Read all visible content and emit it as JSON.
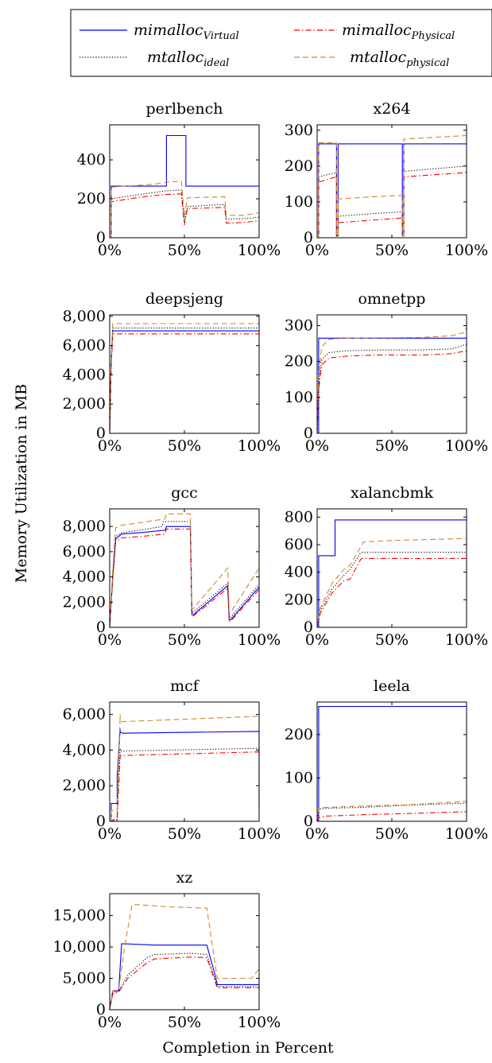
{
  "figure": {
    "ylabel": "Memory Utilization in MB",
    "xlabel": "Completion in Percent"
  },
  "legend": {
    "position": "top",
    "entries": [
      {
        "key": "mv",
        "base": "mimalloc",
        "sub": "Virtual",
        "color": "#0000ff",
        "dash": "solid"
      },
      {
        "key": "mp",
        "base": "mimalloc",
        "sub": "Physical",
        "color": "#ff0000",
        "dash": "dashdot"
      },
      {
        "key": "mi",
        "base": "mtalloc",
        "sub": "ideal",
        "color": "#000000",
        "dash": "dotted"
      },
      {
        "key": "mph",
        "base": "mtalloc",
        "sub": "physical",
        "color": "#d2882f",
        "dash": "dashed"
      }
    ]
  },
  "chart_data": [
    {
      "type": "line",
      "title": "perlbench",
      "xlim": [
        0,
        100
      ],
      "ylim": [
        0,
        580
      ],
      "xticks": [
        0,
        50,
        100
      ],
      "xtick_labels": [
        "0%",
        "50%",
        "100%"
      ],
      "yticks": [
        0,
        200,
        400
      ],
      "ytick_labels": [
        "0",
        "200",
        "400"
      ],
      "series": [
        {
          "key": "mv",
          "x": [
            0,
            1,
            1,
            38,
            38,
            51,
            51,
            100
          ],
          "y": [
            0,
            0,
            265,
            265,
            525,
            525,
            265,
            265
          ]
        },
        {
          "key": "mp",
          "x": [
            0,
            1,
            1,
            20,
            37,
            48,
            50,
            52,
            74,
            77,
            78,
            90,
            100
          ],
          "y": [
            0,
            0,
            185,
            208,
            222,
            225,
            65,
            150,
            155,
            155,
            75,
            78,
            88
          ]
        },
        {
          "key": "mi",
          "x": [
            0,
            1,
            1,
            20,
            37,
            48,
            50,
            52,
            74,
            77,
            78,
            90,
            100
          ],
          "y": [
            0,
            0,
            200,
            222,
            240,
            245,
            80,
            160,
            170,
            170,
            95,
            98,
            105
          ]
        },
        {
          "key": "mph",
          "x": [
            0,
            1,
            1,
            30,
            38,
            47,
            48,
            50,
            52,
            74,
            77,
            78,
            90,
            100
          ],
          "y": [
            0,
            0,
            260,
            275,
            285,
            290,
            290,
            110,
            205,
            210,
            210,
            115,
            115,
            128
          ]
        }
      ]
    },
    {
      "type": "line",
      "title": "x264",
      "xlim": [
        0,
        100
      ],
      "ylim": [
        0,
        315
      ],
      "xticks": [
        0,
        50,
        100
      ],
      "xtick_labels": [
        "0%",
        "50%",
        "100%"
      ],
      "yticks": [
        0,
        100,
        200,
        300
      ],
      "ytick_labels": [
        "0",
        "100",
        "200",
        "300"
      ],
      "series": [
        {
          "key": "mv",
          "x": [
            0,
            1,
            1,
            13,
            13,
            14,
            14,
            57,
            57,
            58,
            58,
            100
          ],
          "y": [
            0,
            0,
            262,
            262,
            5,
            5,
            262,
            262,
            5,
            5,
            262,
            262
          ]
        },
        {
          "key": "mp",
          "x": [
            0,
            1,
            1,
            13,
            13,
            14,
            14,
            40,
            57,
            57,
            58,
            58,
            100
          ],
          "y": [
            0,
            0,
            155,
            170,
            5,
            5,
            42,
            50,
            55,
            5,
            5,
            170,
            182
          ]
        },
        {
          "key": "mi",
          "x": [
            0,
            1,
            1,
            13,
            13,
            14,
            14,
            40,
            57,
            57,
            58,
            58,
            100
          ],
          "y": [
            0,
            0,
            170,
            182,
            5,
            5,
            60,
            68,
            72,
            5,
            5,
            185,
            200
          ]
        },
        {
          "key": "mph",
          "x": [
            0,
            1,
            1,
            13,
            13,
            14,
            14,
            40,
            57,
            57,
            58,
            58,
            100
          ],
          "y": [
            0,
            0,
            265,
            265,
            5,
            5,
            108,
            115,
            118,
            5,
            5,
            275,
            285
          ]
        }
      ]
    },
    {
      "type": "line",
      "title": "deepsjeng",
      "xlim": [
        0,
        100
      ],
      "ylim": [
        0,
        8100
      ],
      "xticks": [
        0,
        50,
        100
      ],
      "xtick_labels": [
        "0%",
        "50%",
        "100%"
      ],
      "yticks": [
        0,
        2000,
        4000,
        6000,
        8000
      ],
      "ytick_labels": [
        "0",
        "2,000",
        "4,000",
        "6,000",
        "8,000"
      ],
      "series": [
        {
          "key": "mv",
          "x": [
            0,
            1,
            2,
            100
          ],
          "y": [
            0,
            5000,
            7000,
            7000
          ]
        },
        {
          "key": "mp",
          "x": [
            0,
            1,
            2,
            100
          ],
          "y": [
            0,
            4500,
            6800,
            6800
          ]
        },
        {
          "key": "mi",
          "x": [
            0,
            1,
            2,
            100
          ],
          "y": [
            0,
            4800,
            7200,
            7200
          ]
        },
        {
          "key": "mph",
          "x": [
            0,
            1,
            2,
            100
          ],
          "y": [
            0,
            5000,
            7500,
            7500
          ]
        }
      ]
    },
    {
      "type": "line",
      "title": "omnetpp",
      "xlim": [
        0,
        100
      ],
      "ylim": [
        0,
        330
      ],
      "xticks": [
        0,
        50,
        100
      ],
      "xtick_labels": [
        "0%",
        "50%",
        "100%"
      ],
      "yticks": [
        0,
        100,
        200,
        300
      ],
      "ytick_labels": [
        "0",
        "100",
        "200",
        "300"
      ],
      "series": [
        {
          "key": "mv",
          "x": [
            0,
            1,
            1,
            100
          ],
          "y": [
            0,
            0,
            265,
            265
          ]
        },
        {
          "key": "mp",
          "x": [
            0,
            1,
            3,
            8,
            20,
            40,
            70,
            90,
            100
          ],
          "y": [
            0,
            120,
            190,
            210,
            215,
            218,
            218,
            222,
            230
          ]
        },
        {
          "key": "mi",
          "x": [
            0,
            1,
            3,
            8,
            20,
            40,
            70,
            90,
            100
          ],
          "y": [
            0,
            140,
            205,
            225,
            230,
            232,
            232,
            235,
            248
          ]
        },
        {
          "key": "mph",
          "x": [
            0,
            1,
            3,
            8,
            20,
            40,
            70,
            90,
            98,
            100
          ],
          "y": [
            0,
            160,
            240,
            262,
            265,
            266,
            267,
            272,
            280,
            295
          ]
        }
      ]
    },
    {
      "type": "line",
      "title": "gcc",
      "xlim": [
        0,
        100
      ],
      "ylim": [
        0,
        9400
      ],
      "xticks": [
        0,
        50,
        100
      ],
      "xtick_labels": [
        "0%",
        "50%",
        "100%"
      ],
      "yticks": [
        0,
        2000,
        4000,
        6000,
        8000
      ],
      "ytick_labels": [
        "0",
        "2,000",
        "4,000",
        "6,000",
        "8,000"
      ],
      "series": [
        {
          "key": "mv",
          "x": [
            0,
            2,
            4,
            8,
            20,
            37,
            38,
            54,
            55,
            56,
            79,
            80,
            81,
            100
          ],
          "y": [
            0,
            4000,
            7000,
            7400,
            7500,
            7700,
            8000,
            8000,
            1000,
            1000,
            3300,
            600,
            600,
            3200
          ]
        },
        {
          "key": "mp",
          "x": [
            0,
            2,
            4,
            8,
            20,
            37,
            38,
            54,
            55,
            56,
            79,
            80,
            81,
            100
          ],
          "y": [
            0,
            3800,
            6800,
            7100,
            7200,
            7400,
            7800,
            7800,
            900,
            900,
            3100,
            500,
            500,
            3000
          ]
        },
        {
          "key": "mi",
          "x": [
            0,
            2,
            4,
            8,
            20,
            35,
            36,
            54,
            55,
            56,
            79,
            80,
            81,
            100
          ],
          "y": [
            0,
            4000,
            7200,
            7500,
            7700,
            8000,
            8400,
            8400,
            1200,
            1200,
            3500,
            800,
            800,
            3400
          ]
        },
        {
          "key": "mph",
          "x": [
            0,
            2,
            4,
            8,
            20,
            37,
            38,
            54,
            55,
            56,
            79,
            80,
            81,
            100
          ],
          "y": [
            0,
            4500,
            7900,
            8100,
            8300,
            8600,
            9000,
            9000,
            1500,
            1500,
            4700,
            1200,
            1200,
            4700
          ]
        }
      ]
    },
    {
      "type": "line",
      "title": "xalancbmk",
      "xlim": [
        0,
        100
      ],
      "ylim": [
        0,
        860
      ],
      "xticks": [
        0,
        50,
        100
      ],
      "xtick_labels": [
        "0%",
        "50%",
        "100%"
      ],
      "yticks": [
        0,
        200,
        400,
        600,
        800
      ],
      "ytick_labels": [
        "0",
        "200",
        "400",
        "600",
        "800"
      ],
      "series": [
        {
          "key": "mv",
          "x": [
            0,
            1,
            1,
            12,
            12,
            100
          ],
          "y": [
            0,
            0,
            520,
            520,
            780,
            780
          ]
        },
        {
          "key": "mp",
          "x": [
            0,
            2,
            10,
            18,
            22,
            29,
            30,
            32,
            100
          ],
          "y": [
            0,
            100,
            250,
            340,
            350,
            490,
            500,
            500,
            500
          ]
        },
        {
          "key": "mi",
          "x": [
            0,
            2,
            10,
            18,
            22,
            29,
            30,
            32,
            100
          ],
          "y": [
            0,
            120,
            280,
            380,
            420,
            540,
            545,
            545,
            545
          ]
        },
        {
          "key": "mph",
          "x": [
            0,
            2,
            10,
            18,
            22,
            30,
            31,
            50,
            100
          ],
          "y": [
            0,
            140,
            320,
            420,
            450,
            600,
            620,
            630,
            645
          ]
        }
      ]
    },
    {
      "type": "line",
      "title": "mcf",
      "xlim": [
        0,
        100
      ],
      "ylim": [
        0,
        6700
      ],
      "xticks": [
        0,
        50,
        100
      ],
      "xtick_labels": [
        "0%",
        "50%",
        "100%"
      ],
      "yticks": [
        0,
        2000,
        4000,
        6000
      ],
      "ytick_labels": [
        "0",
        "2,000",
        "4,000",
        "6,000"
      ],
      "series": [
        {
          "key": "mv",
          "x": [
            0,
            1,
            1,
            5,
            5,
            7,
            7,
            9,
            100,
            100
          ],
          "y": [
            0,
            0,
            1000,
            1000,
            2500,
            5200,
            5000,
            4950,
            5050,
            700
          ]
        },
        {
          "key": "mp",
          "x": [
            0,
            1,
            1,
            5,
            5,
            7,
            7,
            9,
            100,
            100
          ],
          "y": [
            0,
            0,
            50,
            50,
            200,
            3700,
            3700,
            3700,
            3900,
            500
          ]
        },
        {
          "key": "mi",
          "x": [
            0,
            1,
            1,
            5,
            5,
            7,
            7,
            9,
            100,
            100
          ],
          "y": [
            0,
            0,
            100,
            100,
            500,
            4100,
            3950,
            3950,
            4100,
            600
          ]
        },
        {
          "key": "mph",
          "x": [
            0,
            1,
            1,
            5,
            5,
            7,
            7,
            9,
            100,
            100
          ],
          "y": [
            0,
            0,
            600,
            600,
            1000,
            6000,
            5600,
            5600,
            5900,
            800
          ]
        }
      ]
    },
    {
      "type": "line",
      "title": "leela",
      "xlim": [
        0,
        100
      ],
      "ylim": [
        0,
        275
      ],
      "xticks": [
        0,
        50,
        100
      ],
      "xtick_labels": [
        "0%",
        "50%",
        "100%"
      ],
      "yticks": [
        0,
        100,
        200
      ],
      "ytick_labels": [
        "0",
        "100",
        "200"
      ],
      "series": [
        {
          "key": "mv",
          "x": [
            0,
            1,
            1,
            100
          ],
          "y": [
            0,
            0,
            265,
            265
          ]
        },
        {
          "key": "mp",
          "x": [
            0,
            1,
            5,
            30,
            60,
            100
          ],
          "y": [
            0,
            8,
            12,
            15,
            18,
            22
          ]
        },
        {
          "key": "mi",
          "x": [
            0,
            1,
            5,
            30,
            60,
            100
          ],
          "y": [
            0,
            28,
            30,
            32,
            37,
            42
          ]
        },
        {
          "key": "mph",
          "x": [
            0,
            1,
            5,
            30,
            60,
            100
          ],
          "y": [
            0,
            30,
            32,
            35,
            38,
            46
          ]
        }
      ]
    },
    {
      "type": "line",
      "title": "xz",
      "xlim": [
        0,
        100
      ],
      "ylim": [
        0,
        18500
      ],
      "xticks": [
        0,
        50,
        100
      ],
      "xtick_labels": [
        "0%",
        "50%",
        "100%"
      ],
      "yticks": [
        0,
        5000,
        10000,
        15000
      ],
      "ytick_labels": [
        "0",
        "5,000",
        "10,000",
        "15,000"
      ],
      "series": [
        {
          "key": "mv",
          "x": [
            0,
            2,
            6,
            8,
            10,
            30,
            65,
            70,
            72,
            100,
            100
          ],
          "y": [
            0,
            3000,
            3000,
            10500,
            10500,
            10300,
            10300,
            6000,
            4000,
            4000,
            5500
          ]
        },
        {
          "key": "mp",
          "x": [
            0,
            2,
            6,
            8,
            12,
            25,
            30,
            55,
            65,
            72,
            100
          ],
          "y": [
            0,
            2500,
            2800,
            3500,
            5000,
            7500,
            8100,
            8400,
            8300,
            3500,
            3500
          ]
        },
        {
          "key": "mi",
          "x": [
            0,
            2,
            6,
            8,
            12,
            25,
            30,
            55,
            65,
            72,
            100
          ],
          "y": [
            0,
            2700,
            3000,
            3800,
            5500,
            8300,
            8800,
            9000,
            8800,
            3700,
            3700
          ]
        },
        {
          "key": "mph",
          "x": [
            0,
            2,
            6,
            10,
            15,
            40,
            65,
            72,
            95,
            100
          ],
          "y": [
            0,
            3000,
            3200,
            10000,
            16800,
            16400,
            16200,
            5000,
            5000,
            6500
          ]
        }
      ]
    }
  ]
}
